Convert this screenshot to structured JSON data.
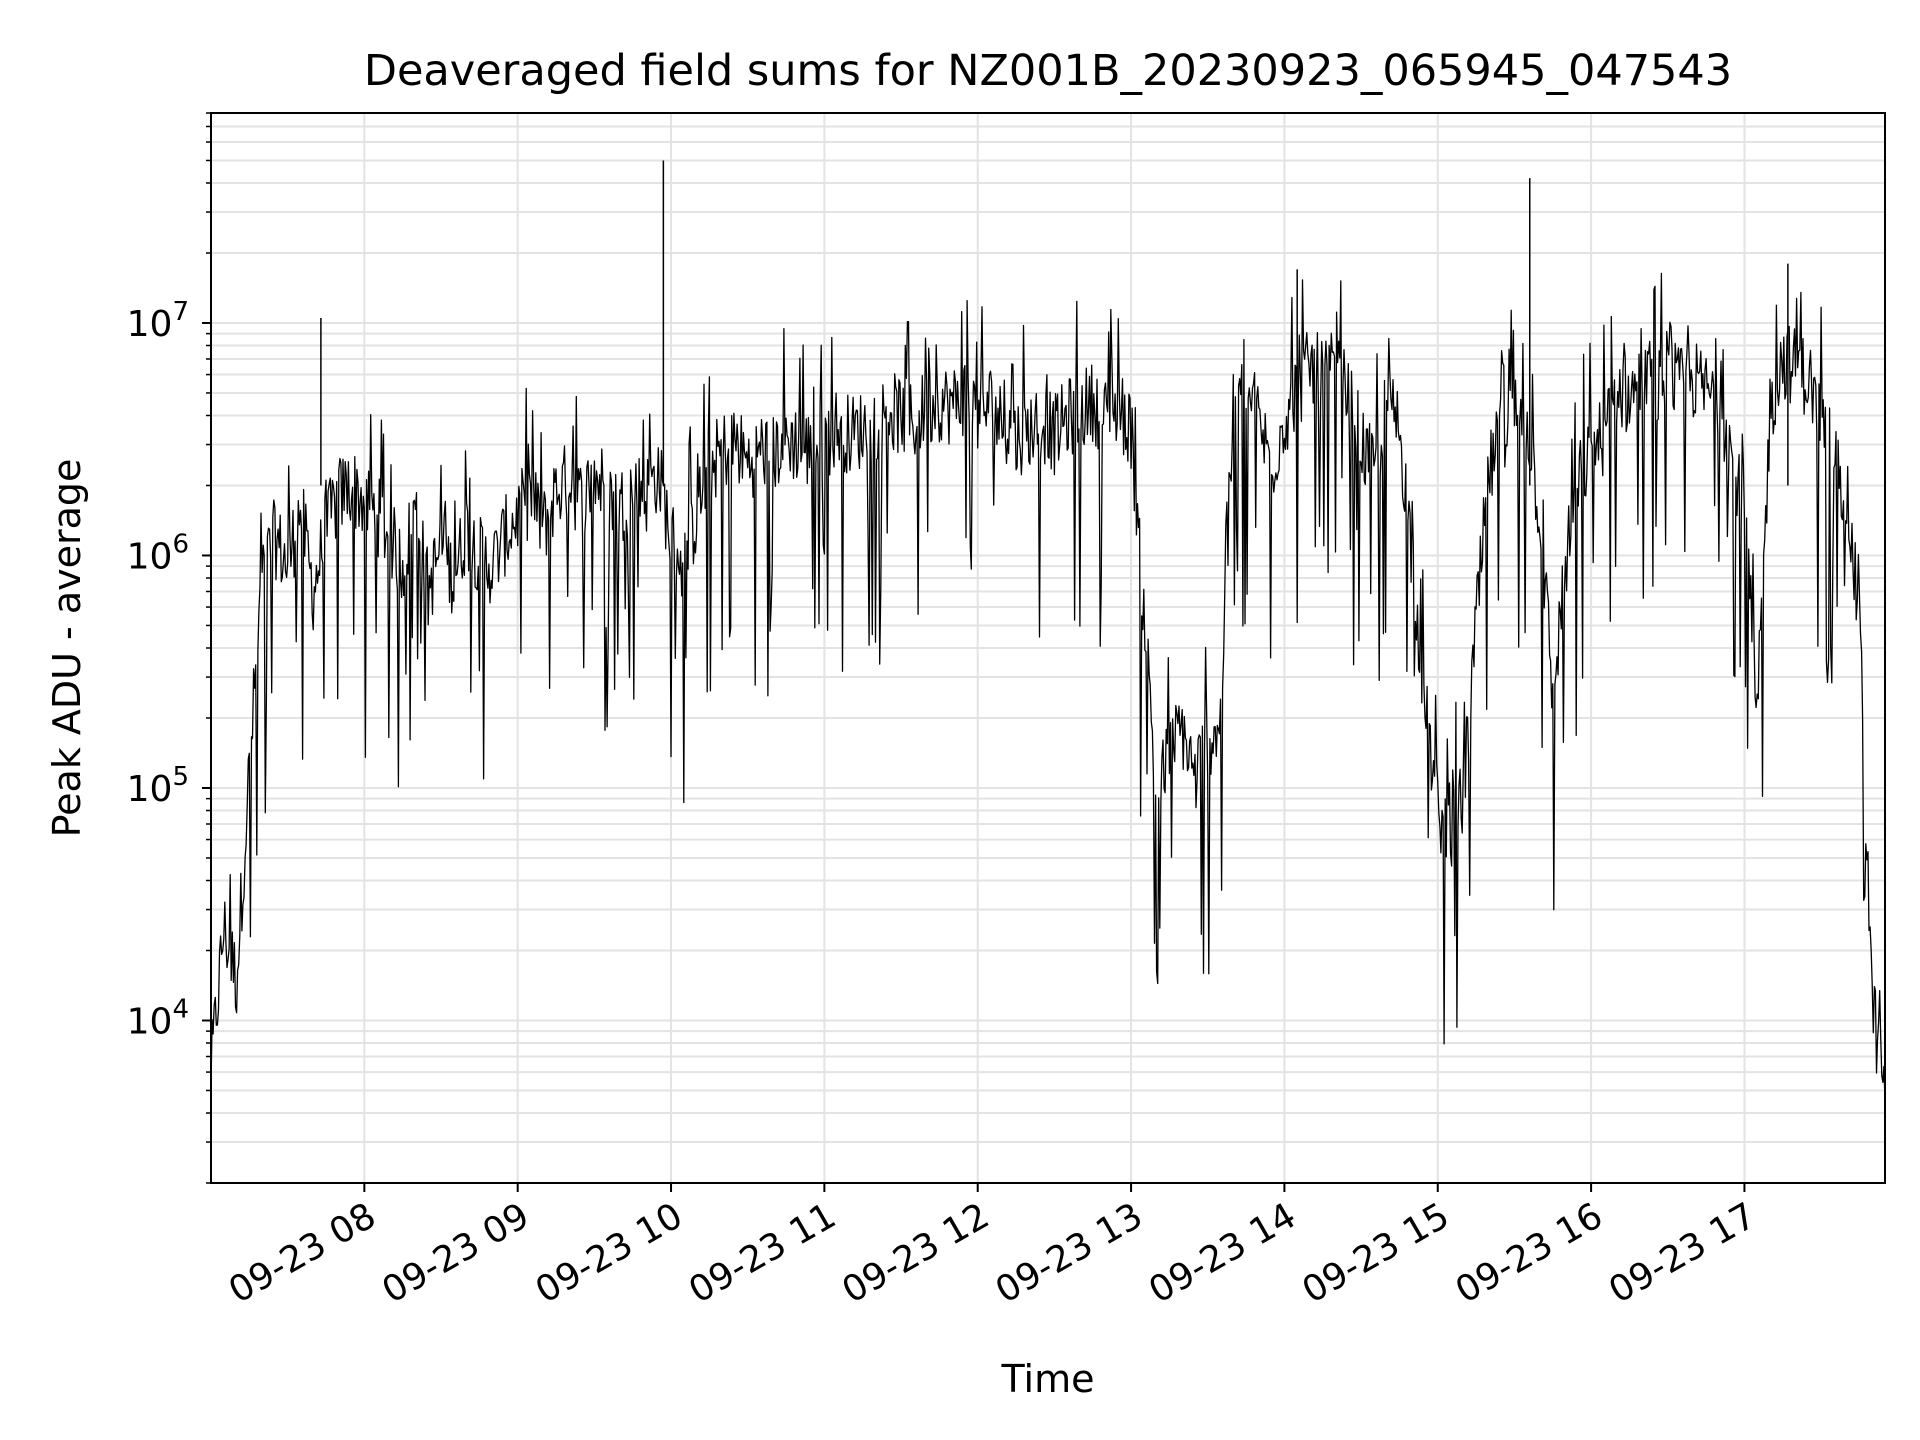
{
  "chart_data": {
    "type": "line",
    "title": "Deaveraged field sums for NZ001B_20230923_065945_047543",
    "xlabel": "Time",
    "ylabel": "Peak ADU - average",
    "yscale": "log",
    "ylim": [
      2000,
      80000000
    ],
    "xlim": [
      "2023-09-23 07:00",
      "2023-09-23 17:55"
    ],
    "grid": true,
    "line_color": "#000000",
    "grid_color": "#e3e3e3",
    "x_ticks": [
      "09-23 08",
      "09-23 09",
      "09-23 10",
      "09-23 11",
      "09-23 12",
      "09-23 13",
      "09-23 14",
      "09-23 15",
      "09-23 16",
      "09-23 17"
    ],
    "x_tick_times": [
      "2023-09-23 08:00",
      "2023-09-23 09:00",
      "2023-09-23 10:00",
      "2023-09-23 11:00",
      "2023-09-23 12:00",
      "2023-09-23 13:00",
      "2023-09-23 14:00",
      "2023-09-23 15:00",
      "2023-09-23 16:00",
      "2023-09-23 17:00"
    ],
    "y_ticks": [
      {
        "value": 10000,
        "base": "10",
        "exp": "4"
      },
      {
        "value": 100000,
        "base": "10",
        "exp": "5"
      },
      {
        "value": 1000000,
        "base": "10",
        "exp": "6"
      },
      {
        "value": 10000000,
        "base": "10",
        "exp": "7"
      }
    ],
    "series": [
      {
        "x": [
          "2023-09-23 07:00",
          "2023-09-23 07:05",
          "2023-09-23 07:10",
          "2023-09-23 07:15",
          "2023-09-23 07:20",
          "2023-09-23 07:25",
          "2023-09-23 07:30",
          "2023-09-23 07:35",
          "2023-09-23 07:40",
          "2023-09-23 07:45",
          "2023-09-23 07:50",
          "2023-09-23 07:55",
          "2023-09-23 08:00",
          "2023-09-23 08:05",
          "2023-09-23 08:10",
          "2023-09-23 08:15",
          "2023-09-23 08:20",
          "2023-09-23 08:25",
          "2023-09-23 08:30",
          "2023-09-23 08:35",
          "2023-09-23 08:40",
          "2023-09-23 08:45",
          "2023-09-23 08:50",
          "2023-09-23 08:55",
          "2023-09-23 09:00",
          "2023-09-23 09:05",
          "2023-09-23 09:10",
          "2023-09-23 09:15",
          "2023-09-23 09:20",
          "2023-09-23 09:25",
          "2023-09-23 09:30",
          "2023-09-23 09:35",
          "2023-09-23 09:40",
          "2023-09-23 09:45",
          "2023-09-23 09:50",
          "2023-09-23 09:55",
          "2023-09-23 10:00",
          "2023-09-23 10:05",
          "2023-09-23 10:10",
          "2023-09-23 10:15",
          "2023-09-23 10:20",
          "2023-09-23 10:25",
          "2023-09-23 10:30",
          "2023-09-23 10:35",
          "2023-09-23 10:40",
          "2023-09-23 10:45",
          "2023-09-23 10:50",
          "2023-09-23 10:55",
          "2023-09-23 11:00",
          "2023-09-23 11:05",
          "2023-09-23 11:10",
          "2023-09-23 11:15",
          "2023-09-23 11:20",
          "2023-09-23 11:25",
          "2023-09-23 11:30",
          "2023-09-23 11:35",
          "2023-09-23 11:40",
          "2023-09-23 11:45",
          "2023-09-23 11:50",
          "2023-09-23 11:55",
          "2023-09-23 12:00",
          "2023-09-23 12:05",
          "2023-09-23 12:10",
          "2023-09-23 12:15",
          "2023-09-23 12:20",
          "2023-09-23 12:25",
          "2023-09-23 12:30",
          "2023-09-23 12:35",
          "2023-09-23 12:40",
          "2023-09-23 12:45",
          "2023-09-23 12:50",
          "2023-09-23 12:55",
          "2023-09-23 13:00",
          "2023-09-23 13:05",
          "2023-09-23 13:10",
          "2023-09-23 13:15",
          "2023-09-23 13:20",
          "2023-09-23 13:25",
          "2023-09-23 13:30",
          "2023-09-23 13:35",
          "2023-09-23 13:40",
          "2023-09-23 13:45",
          "2023-09-23 13:50",
          "2023-09-23 13:55",
          "2023-09-23 14:00",
          "2023-09-23 14:05",
          "2023-09-23 14:10",
          "2023-09-23 14:15",
          "2023-09-23 14:20",
          "2023-09-23 14:25",
          "2023-09-23 14:30",
          "2023-09-23 14:35",
          "2023-09-23 14:40",
          "2023-09-23 14:45",
          "2023-09-23 14:50",
          "2023-09-23 14:55",
          "2023-09-23 15:00",
          "2023-09-23 15:05",
          "2023-09-23 15:10",
          "2023-09-23 15:15",
          "2023-09-23 15:20",
          "2023-09-23 15:25",
          "2023-09-23 15:30",
          "2023-09-23 15:35",
          "2023-09-23 15:40",
          "2023-09-23 15:45",
          "2023-09-23 15:50",
          "2023-09-23 15:55",
          "2023-09-23 16:00",
          "2023-09-23 16:05",
          "2023-09-23 16:10",
          "2023-09-23 16:15",
          "2023-09-23 16:20",
          "2023-09-23 16:25",
          "2023-09-23 16:30",
          "2023-09-23 16:35",
          "2023-09-23 16:40",
          "2023-09-23 16:45",
          "2023-09-23 16:50",
          "2023-09-23 16:55",
          "2023-09-23 17:00",
          "2023-09-23 17:05",
          "2023-09-23 17:10",
          "2023-09-23 17:15",
          "2023-09-23 17:20",
          "2023-09-23 17:25",
          "2023-09-23 17:30",
          "2023-09-23 17:35",
          "2023-09-23 17:40",
          "2023-09-23 17:45",
          "2023-09-23 17:50",
          "2023-09-23 17:55"
        ],
        "y": [
          6000,
          25000,
          15000,
          120000,
          800000,
          1200000,
          900000,
          1600000,
          700000,
          1300000,
          1800000,
          2000000,
          1700000,
          1500000,
          1200000,
          900000,
          1600000,
          700000,
          1100000,
          800000,
          1300000,
          1000000,
          900000,
          1200000,
          1500000,
          1800000,
          1300000,
          1900000,
          2100000,
          1700000,
          2200000,
          1900000,
          1600000,
          2000000,
          1800000,
          2300000,
          1200000,
          900000,
          1500000,
          2400000,
          2800000,
          3100000,
          2500000,
          2900000,
          2700000,
          3200000,
          3000000,
          2800000,
          3100000,
          3600000,
          3300000,
          3500000,
          3800000,
          4200000,
          4000000,
          3700000,
          4300000,
          4600000,
          4400000,
          4900000,
          4100000,
          4500000,
          3600000,
          3200000,
          3500000,
          3800000,
          3300000,
          3900000,
          4200000,
          4600000,
          3900000,
          4300000,
          3500000,
          600000,
          90000,
          140000,
          180000,
          110000,
          160000,
          200000,
          4200000,
          5200000,
          3800000,
          2400000,
          3900000,
          5100000,
          6500000,
          5800000,
          6200000,
          4800000,
          3100000,
          2200000,
          4500000,
          3600000,
          1000000,
          220000,
          80000,
          65000,
          90000,
          500000,
          2200000,
          3400000,
          4200000,
          3800000,
          1500000,
          250000,
          900000,
          2100000,
          2800000,
          3300000,
          5200000,
          4800000,
          5600000,
          5000000,
          5800000,
          5300000,
          5700000,
          5100000,
          4700000,
          2800000,
          1600000,
          190000,
          4200000,
          7100000,
          6400000,
          5800000,
          4100000,
          2600000,
          1800000,
          500000,
          12000,
          4500
        ]
      }
    ],
    "spikes": [
      {
        "x": "2023-09-23 09:57",
        "y": 50000000
      },
      {
        "x": "2023-09-23 14:05",
        "y": 17000000
      },
      {
        "x": "2023-09-23 15:36",
        "y": 42000000
      },
      {
        "x": "2023-09-23 17:17",
        "y": 18000000
      },
      {
        "x": "2023-09-23 07:43",
        "y": 10500000
      }
    ]
  }
}
